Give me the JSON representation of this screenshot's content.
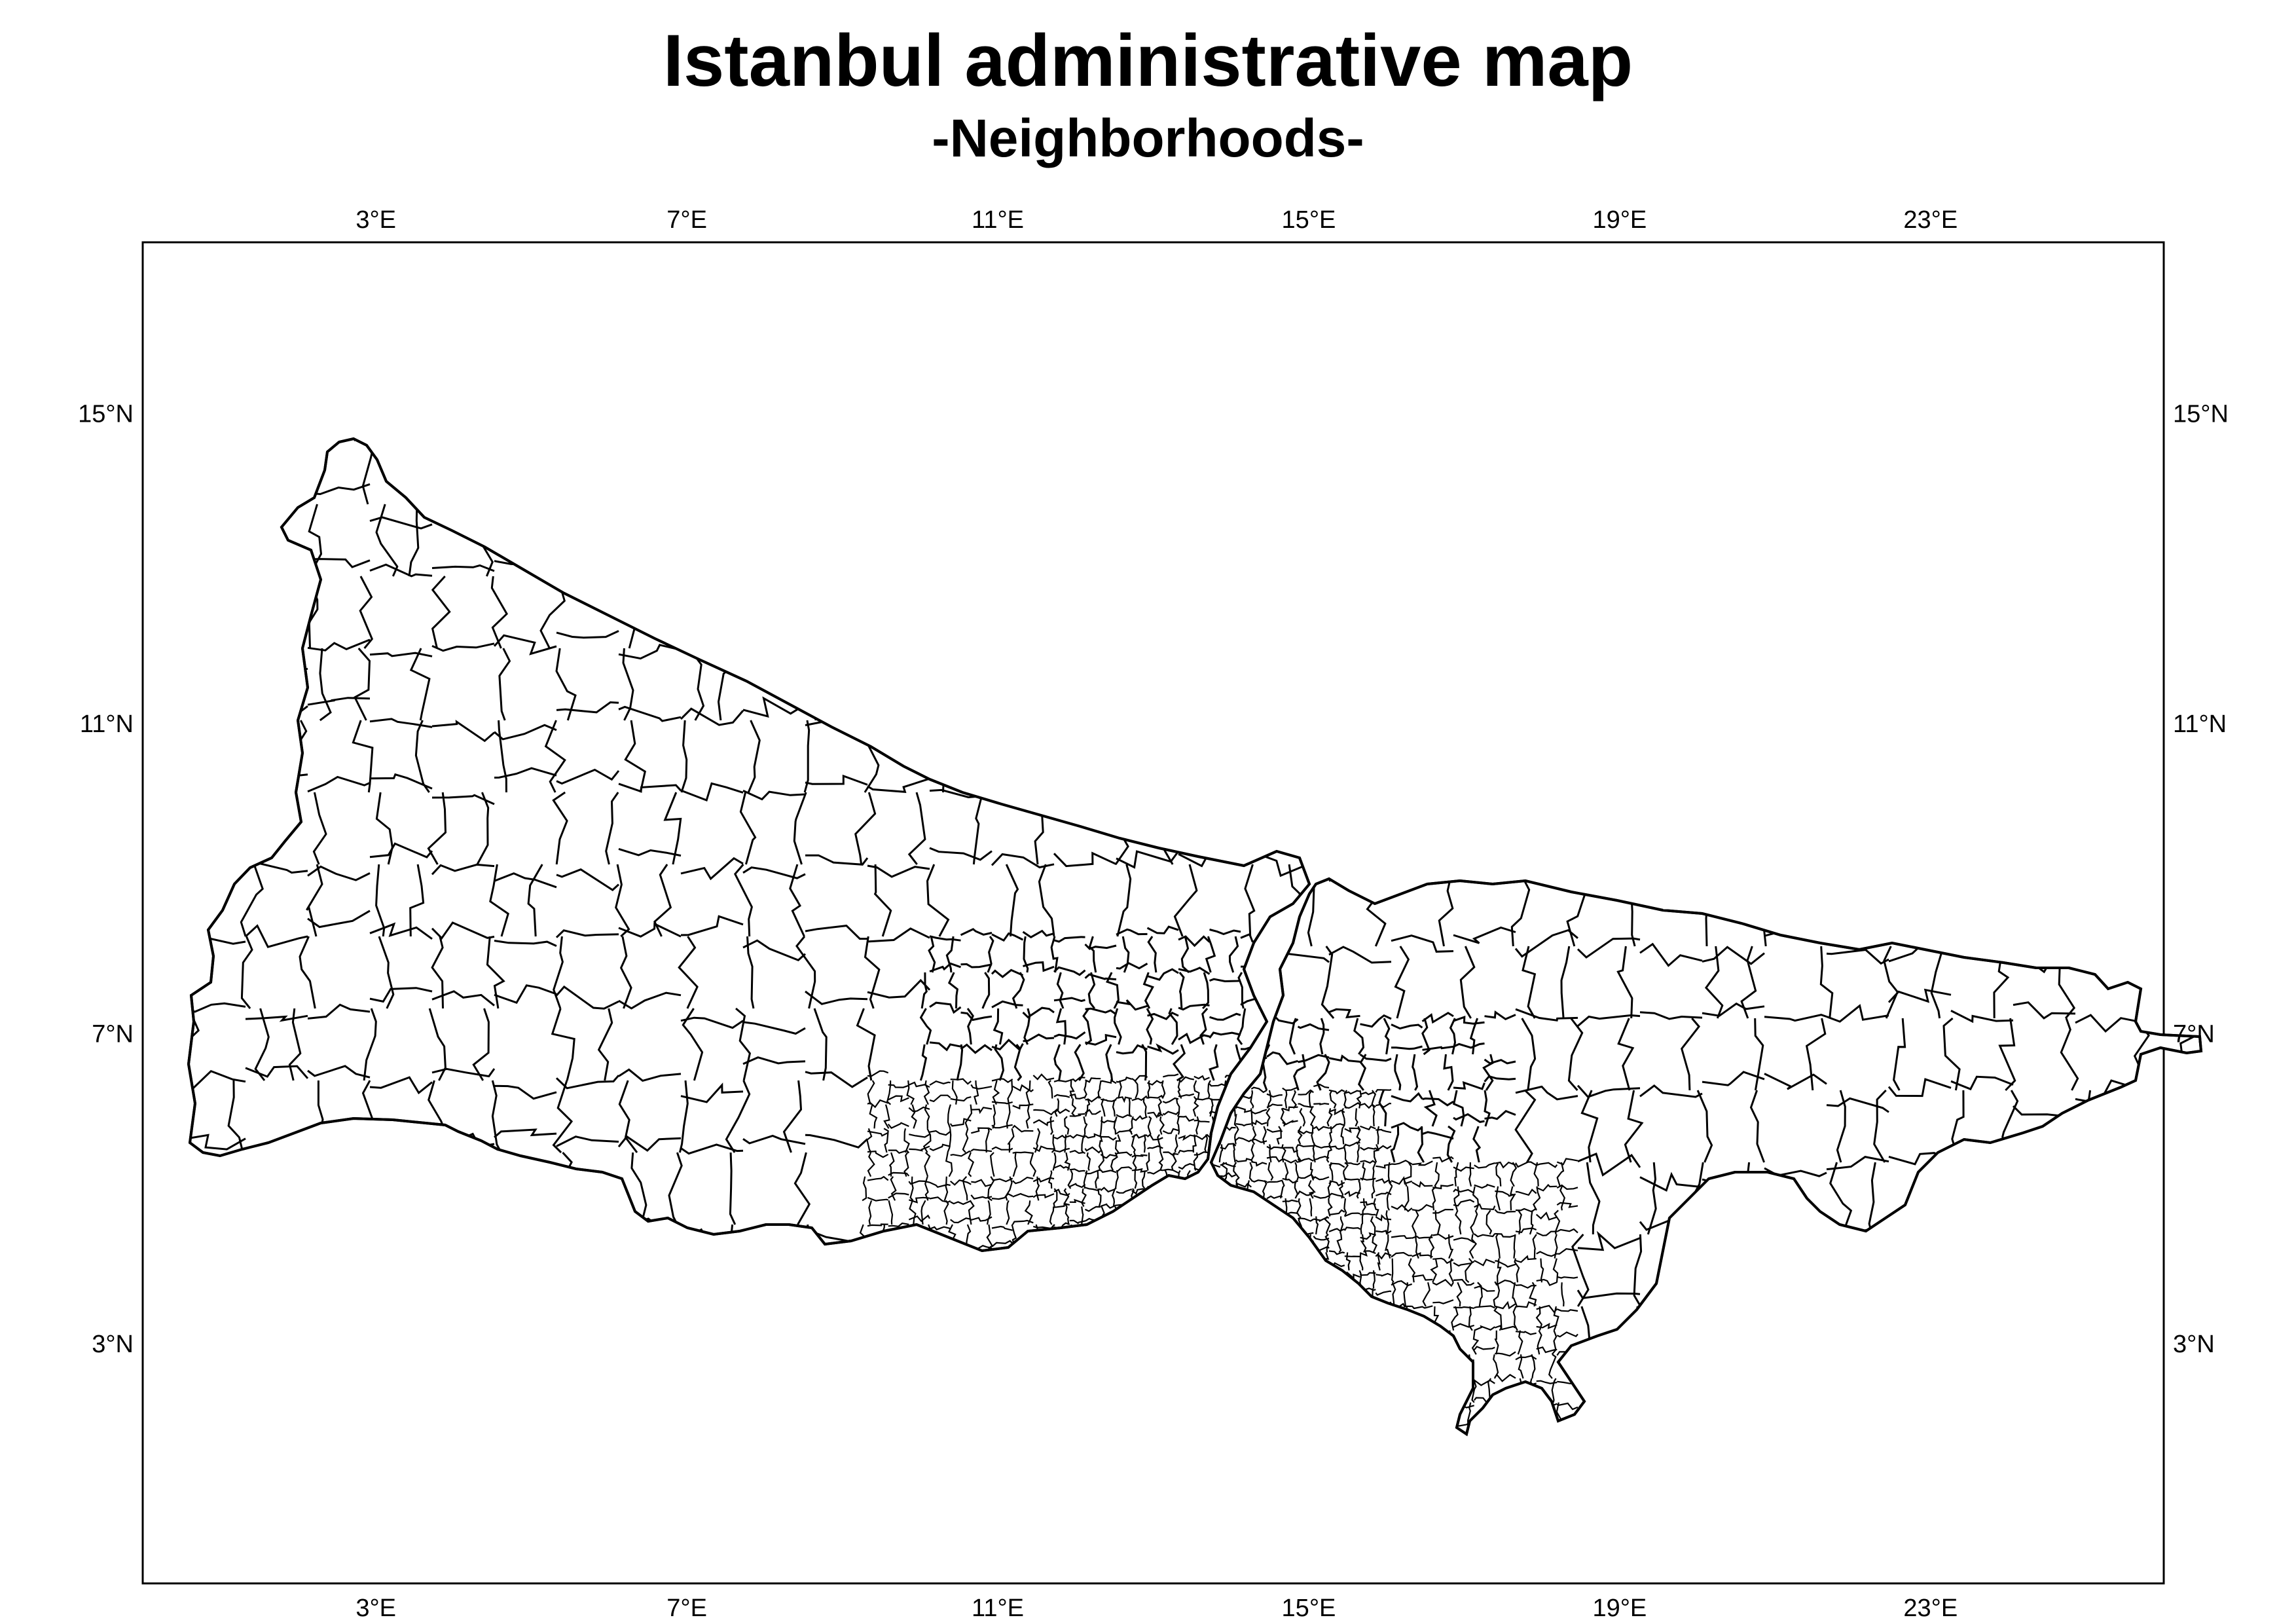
{
  "title": "Istanbul administrative map",
  "subtitle": "-Neighborhoods-",
  "colors": {
    "boundary": "#000000",
    "land": "#ffffff",
    "background": "#ffffff"
  },
  "axes": {
    "longitude": {
      "ticks": [
        3,
        7,
        11,
        15,
        19,
        23
      ],
      "labels": [
        "3°E",
        "7°E",
        "11°E",
        "15°E",
        "19°E",
        "23°E"
      ],
      "range": [
        0,
        26
      ]
    },
    "latitude": {
      "ticks": [
        15,
        11,
        7,
        3
      ],
      "labels": [
        "15°N",
        "11°N",
        "7°N",
        "3°N"
      ],
      "range": [
        -0.1,
        17.2
      ]
    }
  },
  "features": [
    {
      "name": "istanbul-european-side",
      "label": ""
    },
    {
      "name": "istanbul-asian-side",
      "label": ""
    }
  ]
}
